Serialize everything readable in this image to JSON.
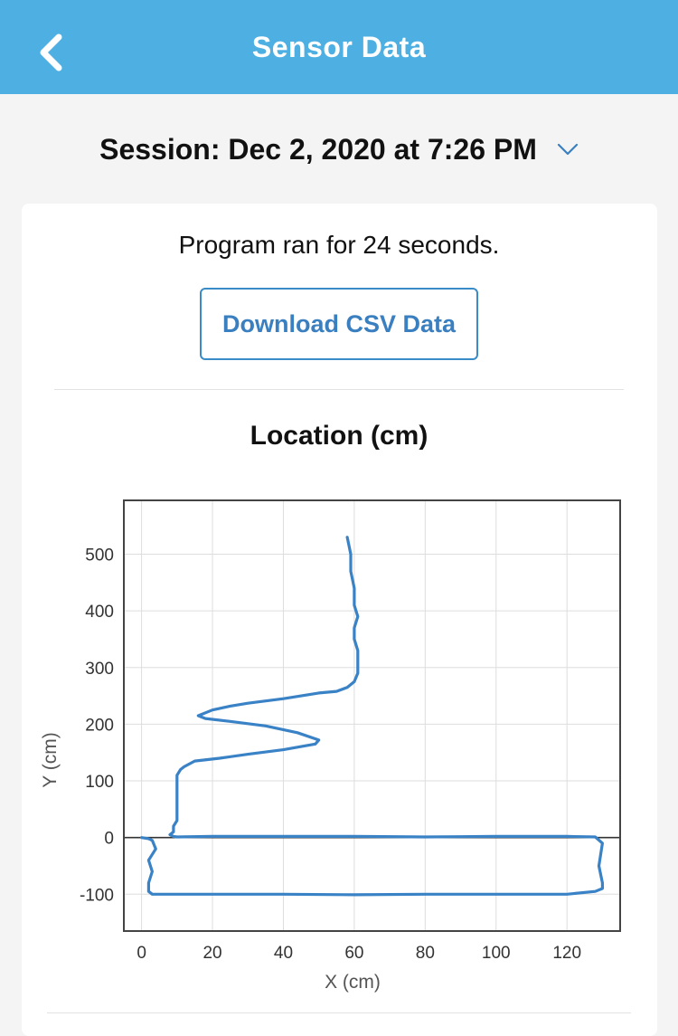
{
  "header": {
    "title": "Sensor Data",
    "back_icon": "chevron-left-icon"
  },
  "session": {
    "label": "Session: Dec 2, 2020 at 7:26 PM",
    "dropdown_icon": "chevron-down-icon"
  },
  "summary": {
    "runtime_text": "Program ran for 24 seconds."
  },
  "actions": {
    "download_label": "Download CSV Data"
  },
  "colors": {
    "header": "#4eb0e2",
    "accent": "#3a7fc0",
    "line": "#3a82c6"
  },
  "chart": {
    "title": "Location (cm)",
    "chart_data": {
      "type": "line",
      "title": "Location (cm)",
      "xlabel": "X (cm)",
      "ylabel": "Y (cm)",
      "xlim": [
        -5,
        135
      ],
      "ylim": [
        -165,
        595
      ],
      "x_ticks": [
        0,
        20,
        40,
        60,
        80,
        100,
        120
      ],
      "y_ticks": [
        -100,
        0,
        100,
        200,
        300,
        400,
        500
      ],
      "grid": true,
      "legend": "none",
      "series": [
        {
          "x": [
            58,
            59,
            59,
            60,
            60,
            61,
            60,
            60,
            61,
            61,
            61,
            60,
            58,
            55,
            50,
            40,
            30,
            25,
            20,
            16,
            18,
            25,
            35,
            44,
            50,
            49,
            40,
            30,
            22,
            15,
            12,
            11,
            10,
            10,
            10,
            10,
            10,
            9,
            9,
            8,
            9,
            10,
            20,
            40,
            60,
            80,
            100,
            120,
            128,
            130,
            129,
            130,
            130,
            128,
            120,
            100,
            80,
            60,
            40,
            20,
            3,
            2,
            2,
            3,
            2,
            4,
            3,
            2,
            0
          ],
          "y": [
            530,
            500,
            470,
            440,
            410,
            390,
            370,
            350,
            330,
            310,
            290,
            275,
            265,
            258,
            255,
            245,
            237,
            232,
            225,
            215,
            210,
            205,
            197,
            185,
            172,
            165,
            155,
            147,
            140,
            135,
            125,
            120,
            110,
            90,
            70,
            40,
            30,
            20,
            10,
            5,
            2,
            1,
            2,
            2,
            2,
            1,
            2,
            2,
            1,
            -10,
            -50,
            -80,
            -90,
            -95,
            -100,
            -100,
            -100,
            -101,
            -100,
            -100,
            -100,
            -95,
            -80,
            -60,
            -40,
            -20,
            -5,
            -2,
            0
          ]
        }
      ]
    }
  }
}
